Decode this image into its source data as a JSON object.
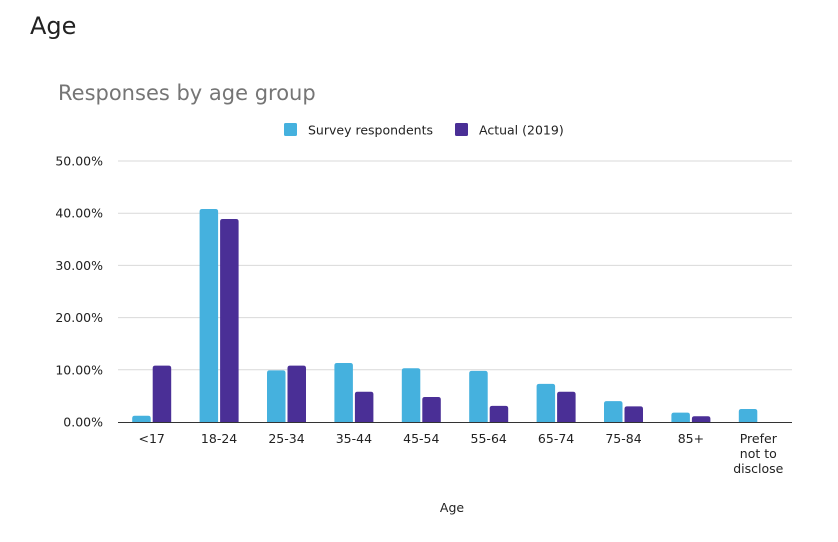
{
  "page": {
    "heading": "Age"
  },
  "colors": {
    "survey": "#45B1DE",
    "actual": "#4A2F96"
  },
  "chart_data": {
    "type": "bar",
    "title": "Responses by age group",
    "xlabel": "Age",
    "ylabel": "",
    "ylim": [
      0,
      50
    ],
    "yticks": [
      "0.00%",
      "10.00%",
      "20.00%",
      "30.00%",
      "40.00%",
      "50.00%"
    ],
    "legend_position": "top-center",
    "grid": true,
    "categories": [
      [
        "<17"
      ],
      [
        "18-24"
      ],
      [
        "25-34"
      ],
      [
        "35-44"
      ],
      [
        "45-54"
      ],
      [
        "55-64"
      ],
      [
        "65-74"
      ],
      [
        "75-84"
      ],
      [
        "85+"
      ],
      [
        "Prefer",
        "not to",
        "disclose"
      ]
    ],
    "series": [
      {
        "name": "Survey respondents",
        "color": "#45B1DE",
        "values": [
          1.2,
          40.8,
          9.9,
          11.3,
          10.3,
          9.8,
          7.3,
          4.0,
          1.8,
          2.5
        ]
      },
      {
        "name": "Actual (2019)",
        "color": "#4A2F96",
        "values": [
          10.8,
          38.9,
          10.8,
          5.8,
          4.8,
          3.1,
          5.8,
          3.0,
          1.1,
          0
        ]
      }
    ]
  }
}
